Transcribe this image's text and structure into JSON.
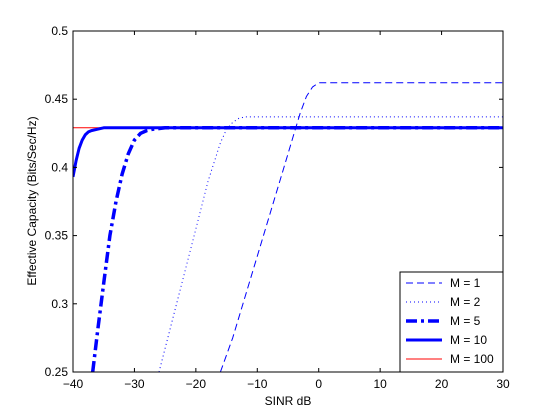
{
  "chart_data": {
    "type": "line",
    "title": "",
    "xlabel": "SINR dB",
    "ylabel": "Effective Capacity (Bits/Sec/Hz)",
    "xlim": [
      -40,
      30
    ],
    "ylim": [
      0.25,
      0.5
    ],
    "xticks": [
      -40,
      -30,
      -20,
      -10,
      0,
      10,
      20,
      30
    ],
    "yticks": [
      0.25,
      0.3,
      0.35,
      0.4,
      0.45,
      0.5
    ],
    "xtick_labels": [
      "−40",
      "−30",
      "−20",
      "−10",
      "0",
      "10",
      "20",
      "30"
    ],
    "ytick_labels": [
      "0.25",
      "0.3",
      "0.35",
      "0.4",
      "0.45",
      "0.5"
    ],
    "grid": false,
    "legend_position": "bottom-right",
    "series": [
      {
        "name": "M = 1",
        "style": "dashed",
        "color": "#0000ff",
        "x": [
          -16,
          -14,
          -12,
          -10,
          -8,
          -6,
          -5,
          -4,
          -3,
          -2,
          -1,
          0,
          5,
          10,
          20,
          30
        ],
        "y": [
          0.25,
          0.275,
          0.305,
          0.335,
          0.365,
          0.395,
          0.41,
          0.425,
          0.44,
          0.452,
          0.459,
          0.462,
          0.462,
          0.462,
          0.462,
          0.462
        ]
      },
      {
        "name": "M = 2",
        "style": "dotted",
        "color": "#0000ff",
        "x": [
          -26,
          -24,
          -22,
          -20,
          -18,
          -16,
          -15,
          -14,
          -13,
          -12,
          -10,
          -5,
          0,
          10,
          20,
          30
        ],
        "y": [
          0.25,
          0.285,
          0.32,
          0.355,
          0.39,
          0.418,
          0.428,
          0.433,
          0.436,
          0.437,
          0.437,
          0.437,
          0.437,
          0.437,
          0.437,
          0.437
        ]
      },
      {
        "name": "M = 5",
        "style": "dashdot",
        "color": "#0000ff",
        "x": [
          -36.8,
          -36,
          -35,
          -34,
          -33,
          -32,
          -31,
          -30,
          -29,
          -28,
          -27,
          -25,
          -20,
          -10,
          0,
          10,
          20,
          30
        ],
        "y": [
          0.25,
          0.28,
          0.315,
          0.35,
          0.375,
          0.395,
          0.41,
          0.42,
          0.425,
          0.427,
          0.428,
          0.429,
          0.429,
          0.429,
          0.429,
          0.429,
          0.429,
          0.429
        ]
      },
      {
        "name": "M = 10",
        "style": "solid-thick",
        "color": "#0000ff",
        "x": [
          -40,
          -39.5,
          -39,
          -38.5,
          -38,
          -37.5,
          -37,
          -36,
          -35,
          -34,
          -30,
          -20,
          -10,
          0,
          10,
          20,
          30
        ],
        "y": [
          0.393,
          0.405,
          0.414,
          0.42,
          0.424,
          0.426,
          0.427,
          0.428,
          0.429,
          0.429,
          0.429,
          0.429,
          0.429,
          0.429,
          0.429,
          0.429,
          0.429
        ]
      },
      {
        "name": "M = 100",
        "style": "solid",
        "color": "#ff0000",
        "x": [
          -40,
          -30,
          -20,
          -10,
          0,
          10,
          20,
          30
        ],
        "y": [
          0.429,
          0.429,
          0.429,
          0.429,
          0.429,
          0.429,
          0.429,
          0.429
        ]
      }
    ]
  }
}
